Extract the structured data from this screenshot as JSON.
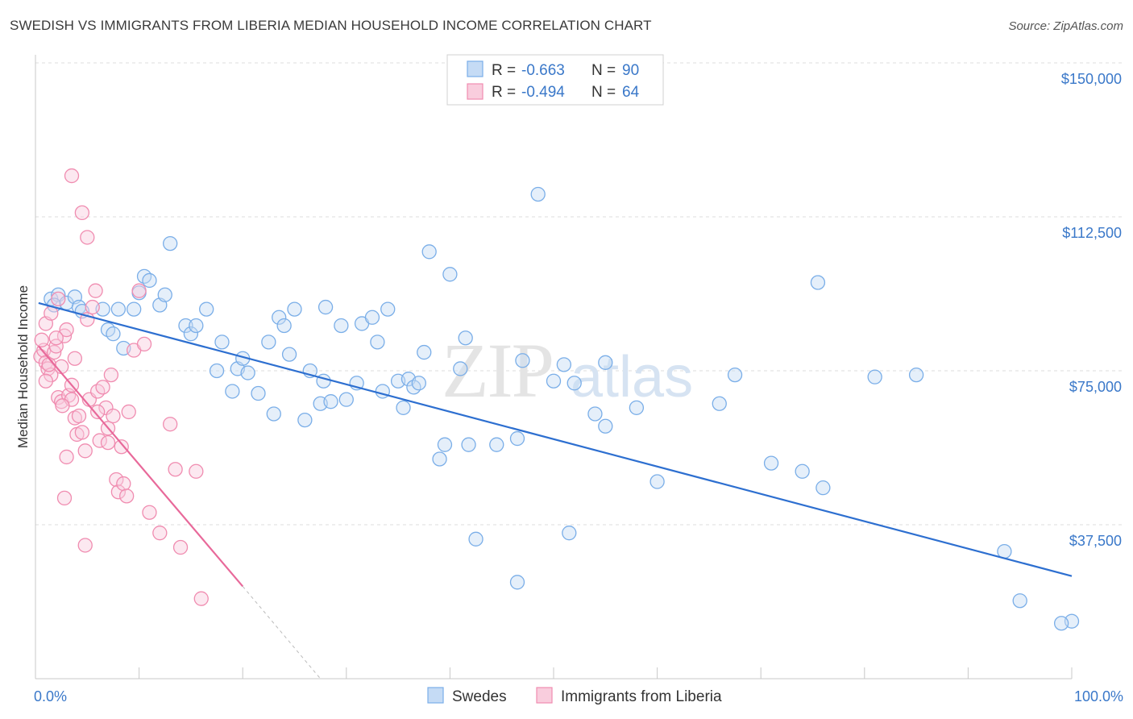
{
  "title": "SWEDISH VS IMMIGRANTS FROM LIBERIA MEDIAN HOUSEHOLD INCOME CORRELATION CHART",
  "source": "Source: ZipAtlas.com",
  "watermark": {
    "zip": "ZIP",
    "atlas": "atlas"
  },
  "chart_data": {
    "type": "scatter",
    "xlabel": "",
    "ylabel": "Median Household Income",
    "xlim": [
      0,
      100
    ],
    "ylim": [
      0,
      155000
    ],
    "x_tick_labels": {
      "left": "0.0%",
      "right": "100.0%"
    },
    "x_minor_ticks": [
      10,
      20,
      30,
      40,
      50,
      60,
      70,
      80,
      90,
      100
    ],
    "y_ticks": [
      {
        "value": 37500,
        "label": "$37,500"
      },
      {
        "value": 75000,
        "label": "$75,000"
      },
      {
        "value": 112500,
        "label": "$112,500"
      },
      {
        "value": 150000,
        "label": "$150,000"
      }
    ],
    "legend": [
      {
        "r_label": "R =",
        "r_value": "-0.663",
        "n_label": "N =",
        "n_value": "90"
      },
      {
        "r_label": "R =",
        "r_value": "-0.494",
        "n_label": "N =",
        "n_value": "64"
      }
    ],
    "series": [
      {
        "name": "Swedes",
        "color": "#7aaee8",
        "fill": "#c5dbf5",
        "line_color": "#2d6fd0",
        "trend": {
          "x0": 0.3,
          "y0": 91500,
          "x1": 100,
          "y1": 25000
        },
        "points": [
          [
            1.5,
            92500
          ],
          [
            2.2,
            93500
          ],
          [
            1.8,
            91000
          ],
          [
            3.0,
            91500
          ],
          [
            3.8,
            93000
          ],
          [
            4.2,
            90500
          ],
          [
            4.5,
            89500
          ],
          [
            6.5,
            90000
          ],
          [
            7.0,
            85000
          ],
          [
            7.5,
            84000
          ],
          [
            8.5,
            80500
          ],
          [
            8.0,
            90000
          ],
          [
            9.5,
            90000
          ],
          [
            10.0,
            94000
          ],
          [
            10.5,
            98000
          ],
          [
            11.0,
            97000
          ],
          [
            12.0,
            91000
          ],
          [
            12.5,
            93500
          ],
          [
            13.0,
            106000
          ],
          [
            14.5,
            86000
          ],
          [
            15.0,
            84000
          ],
          [
            15.5,
            86000
          ],
          [
            16.5,
            90000
          ],
          [
            17.5,
            75000
          ],
          [
            18.0,
            82000
          ],
          [
            19.0,
            70000
          ],
          [
            19.5,
            75500
          ],
          [
            20.0,
            78000
          ],
          [
            20.5,
            74500
          ],
          [
            21.5,
            69500
          ],
          [
            22.5,
            82000
          ],
          [
            23.0,
            64500
          ],
          [
            23.5,
            88000
          ],
          [
            24.0,
            86000
          ],
          [
            24.5,
            79000
          ],
          [
            25.0,
            90000
          ],
          [
            26.0,
            63000
          ],
          [
            26.5,
            75000
          ],
          [
            27.5,
            67000
          ],
          [
            27.8,
            72500
          ],
          [
            28.5,
            67500
          ],
          [
            29.5,
            86000
          ],
          [
            30.0,
            68000
          ],
          [
            31.0,
            72000
          ],
          [
            31.5,
            86500
          ],
          [
            32.5,
            88000
          ],
          [
            33.0,
            82000
          ],
          [
            34.0,
            90000
          ],
          [
            35.0,
            72500
          ],
          [
            35.5,
            66000
          ],
          [
            36.0,
            73000
          ],
          [
            36.5,
            71000
          ],
          [
            37.5,
            79500
          ],
          [
            38.0,
            104000
          ],
          [
            39.0,
            53500
          ],
          [
            39.5,
            57000
          ],
          [
            40.0,
            98500
          ],
          [
            41.0,
            75500
          ],
          [
            41.5,
            83000
          ],
          [
            41.8,
            57000
          ],
          [
            42.5,
            34000
          ],
          [
            44.5,
            57000
          ],
          [
            46.5,
            58500
          ],
          [
            46.5,
            23500
          ],
          [
            47.0,
            77500
          ],
          [
            48.5,
            118000
          ],
          [
            50.0,
            72500
          ],
          [
            51.0,
            76500
          ],
          [
            51.5,
            35500
          ],
          [
            52.0,
            72000
          ],
          [
            54.0,
            64500
          ],
          [
            55.0,
            61500
          ],
          [
            55.0,
            77000
          ],
          [
            58.0,
            66000
          ],
          [
            60.0,
            48000
          ],
          [
            66.0,
            67000
          ],
          [
            67.5,
            74000
          ],
          [
            71.0,
            52500
          ],
          [
            74.0,
            50500
          ],
          [
            75.5,
            96500
          ],
          [
            76.0,
            46500
          ],
          [
            81.0,
            73500
          ],
          [
            93.5,
            31000
          ],
          [
            100.0,
            14000
          ],
          [
            99.0,
            13500
          ],
          [
            95.0,
            19000
          ],
          [
            85.0,
            74000
          ],
          [
            37.0,
            72000
          ],
          [
            28.0,
            90500
          ],
          [
            33.5,
            70000
          ]
        ]
      },
      {
        "name": "Immigrants from Liberia",
        "color": "#f08cb0",
        "fill": "#f9cddd",
        "line_color": "#e8699a",
        "trend": {
          "x0": 0.3,
          "y0": 81000,
          "x1": 20.0,
          "y1": 22500,
          "dash_x1": 27.5,
          "dash_y1": 0
        },
        "points": [
          [
            0.5,
            78500
          ],
          [
            0.8,
            80000
          ],
          [
            1.0,
            77000
          ],
          [
            1.2,
            75500
          ],
          [
            1.5,
            74000
          ],
          [
            1.8,
            79500
          ],
          [
            2.0,
            81000
          ],
          [
            2.2,
            68500
          ],
          [
            2.5,
            67500
          ],
          [
            2.8,
            83500
          ],
          [
            3.0,
            85000
          ],
          [
            3.2,
            69000
          ],
          [
            3.5,
            68000
          ],
          [
            3.8,
            63500
          ],
          [
            4.0,
            59500
          ],
          [
            4.2,
            64000
          ],
          [
            4.5,
            60000
          ],
          [
            4.8,
            55500
          ],
          [
            5.0,
            87500
          ],
          [
            5.2,
            68000
          ],
          [
            5.5,
            90500
          ],
          [
            5.8,
            94500
          ],
          [
            6.0,
            70000
          ],
          [
            6.2,
            58000
          ],
          [
            6.5,
            71000
          ],
          [
            6.8,
            66000
          ],
          [
            7.0,
            61000
          ],
          [
            7.3,
            74000
          ],
          [
            7.5,
            64000
          ],
          [
            7.8,
            48500
          ],
          [
            8.0,
            45500
          ],
          [
            8.3,
            56500
          ],
          [
            8.5,
            47500
          ],
          [
            8.8,
            44500
          ],
          [
            9.0,
            65000
          ],
          [
            9.5,
            80000
          ],
          [
            10.0,
            94500
          ],
          [
            10.5,
            81500
          ],
          [
            11.0,
            40500
          ],
          [
            12.0,
            35500
          ],
          [
            13.0,
            62000
          ],
          [
            13.5,
            51000
          ],
          [
            3.5,
            122500
          ],
          [
            4.5,
            113500
          ],
          [
            5.0,
            107500
          ],
          [
            6.0,
            65000
          ],
          [
            7.0,
            57500
          ],
          [
            3.0,
            54000
          ],
          [
            2.8,
            44000
          ],
          [
            4.8,
            32500
          ],
          [
            14.0,
            32000
          ],
          [
            16.0,
            19500
          ],
          [
            15.5,
            50500
          ],
          [
            1.0,
            86500
          ],
          [
            1.5,
            89000
          ],
          [
            2.0,
            83000
          ],
          [
            2.5,
            76000
          ],
          [
            3.5,
            71500
          ],
          [
            1.0,
            72500
          ],
          [
            2.2,
            92500
          ],
          [
            3.8,
            78000
          ],
          [
            0.6,
            82500
          ],
          [
            1.3,
            76500
          ],
          [
            2.6,
            66500
          ]
        ]
      }
    ]
  }
}
